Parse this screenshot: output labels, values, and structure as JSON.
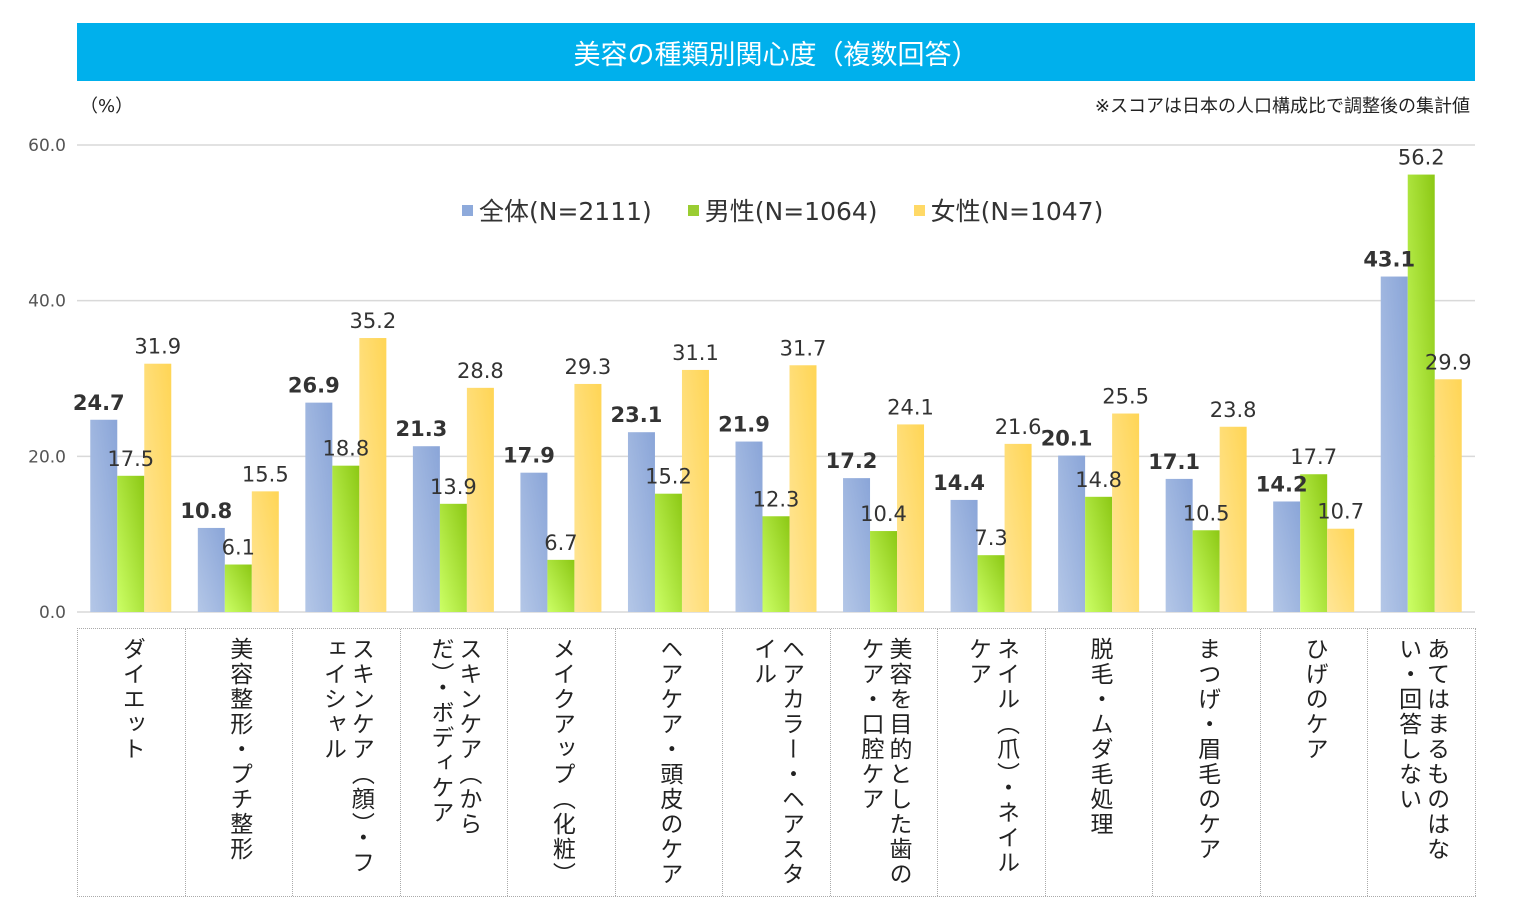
{
  "header": {
    "title": "美容の種類別関心度（複数回答）",
    "unit": "（%）",
    "note": "※スコアは日本の人口構成比で調整後の集計値"
  },
  "legend": [
    {
      "label": "全体(N=2111)",
      "color": "#8eaadb"
    },
    {
      "label": "男性(N=1064)",
      "color": "#9acd32"
    },
    {
      "label": "女性(N=1047)",
      "color": "#ffd966"
    }
  ],
  "chart_data": {
    "type": "bar",
    "title": "美容の種類別関心度（複数回答）",
    "ylabel": "（%）",
    "xlabel": "",
    "ylim": [
      0,
      60
    ],
    "yticks": [
      "0.0",
      "20.0",
      "40.0",
      "60.0"
    ],
    "grid": true,
    "legend_position": "top-center",
    "categories": [
      "ダイエット",
      "美容整形・プチ整形",
      "スキンケア（顔）・フェイシャル",
      "スキンケア（からだ）・ボディケア",
      "メイクアップ（化粧）",
      "ヘアケア・頭皮のケア",
      "ヘアカラー・ヘアスタイル",
      "美容を目的とした歯のケア・口腔ケア",
      "ネイル（爪）・ネイルケア",
      "脱毛・ムダ毛処理",
      "まつげ・眉毛のケア",
      "ひげのケア",
      "あてはまるものはない・回答しない"
    ],
    "series": [
      {
        "name": "全体(N=2111)",
        "values": [
          24.7,
          10.8,
          26.9,
          21.3,
          17.9,
          23.1,
          21.9,
          17.2,
          14.4,
          20.1,
          17.1,
          14.2,
          43.1
        ]
      },
      {
        "name": "男性(N=1064)",
        "values": [
          17.5,
          6.1,
          18.8,
          13.9,
          6.7,
          15.2,
          12.3,
          10.4,
          7.3,
          14.8,
          10.5,
          17.7,
          56.2
        ]
      },
      {
        "name": "女性(N=1047)",
        "values": [
          31.9,
          15.5,
          35.2,
          28.8,
          29.3,
          31.1,
          31.7,
          24.1,
          21.6,
          25.5,
          23.8,
          10.7,
          29.9
        ]
      }
    ],
    "note": "※スコアは日本の人口構成比で調整後の集計値"
  }
}
